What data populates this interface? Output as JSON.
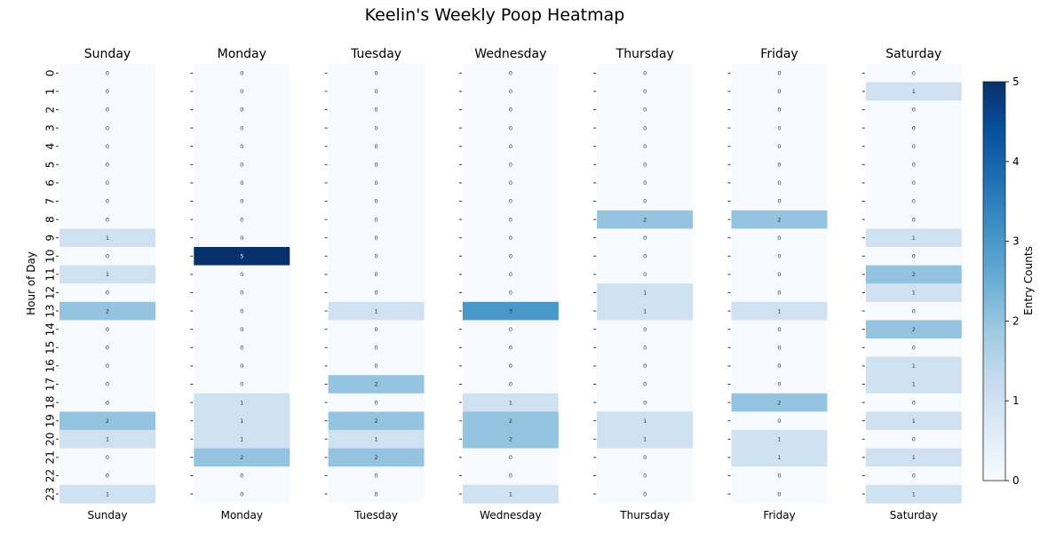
{
  "chart_data": {
    "type": "heatmap",
    "title": "Keelin's Weekly Poop Heatmap",
    "ylabel": "Hour of Day",
    "colorbar_label": "Entry Counts",
    "colorbar_range": [
      0,
      5
    ],
    "colorbar_ticks": [
      "0",
      "1",
      "2",
      "3",
      "4",
      "5"
    ],
    "colormap": [
      "#f7fbff",
      "#deebf7",
      "#c6dbef",
      "#9ecae1",
      "#6baed6",
      "#4292c6",
      "#2171b5",
      "#08519c",
      "#08306b"
    ],
    "hours": [
      "0",
      "1",
      "2",
      "3",
      "4",
      "5",
      "6",
      "7",
      "8",
      "9",
      "10",
      "11",
      "12",
      "13",
      "14",
      "15",
      "16",
      "17",
      "18",
      "19",
      "20",
      "21",
      "22",
      "23"
    ],
    "days": [
      {
        "name": "Sunday",
        "values": [
          0,
          0,
          0,
          0,
          0,
          0,
          0,
          0,
          0,
          1,
          0,
          1,
          0,
          2,
          0,
          0,
          0,
          0,
          0,
          2,
          1,
          0,
          0,
          1
        ]
      },
      {
        "name": "Monday",
        "values": [
          0,
          0,
          0,
          0,
          0,
          0,
          0,
          0,
          0,
          0,
          5,
          0,
          0,
          0,
          0,
          0,
          0,
          0,
          1,
          1,
          1,
          2,
          0,
          0
        ]
      },
      {
        "name": "Tuesday",
        "values": [
          0,
          0,
          0,
          0,
          0,
          0,
          0,
          0,
          0,
          0,
          0,
          0,
          0,
          1,
          0,
          0,
          0,
          2,
          0,
          2,
          1,
          2,
          0,
          0
        ]
      },
      {
        "name": "Wednesday",
        "values": [
          0,
          0,
          0,
          0,
          0,
          0,
          0,
          0,
          0,
          0,
          0,
          0,
          0,
          3,
          0,
          0,
          0,
          0,
          1,
          2,
          2,
          0,
          0,
          1
        ]
      },
      {
        "name": "Thursday",
        "values": [
          0,
          0,
          0,
          0,
          0,
          0,
          0,
          0,
          2,
          0,
          0,
          0,
          1,
          1,
          0,
          0,
          0,
          0,
          0,
          1,
          1,
          0,
          0,
          0
        ]
      },
      {
        "name": "Friday",
        "values": [
          0,
          0,
          0,
          0,
          0,
          0,
          0,
          0,
          2,
          0,
          0,
          0,
          0,
          1,
          0,
          0,
          0,
          0,
          2,
          0,
          1,
          1,
          0,
          0
        ]
      },
      {
        "name": "Saturday",
        "values": [
          0,
          1,
          0,
          0,
          0,
          0,
          0,
          0,
          0,
          1,
          0,
          2,
          1,
          0,
          2,
          0,
          1,
          1,
          0,
          1,
          0,
          1,
          0,
          1
        ]
      }
    ]
  }
}
